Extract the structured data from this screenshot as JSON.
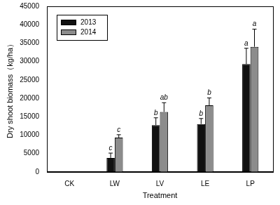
{
  "chart_data": {
    "type": "bar",
    "x_label": "Treatment",
    "y_label": "Dry shoot biomass（kg/ha）",
    "categories": [
      "CK",
      "LW",
      "LV",
      "LE",
      "LP"
    ],
    "series": [
      {
        "name": "2013",
        "color": "#111111",
        "values": [
          0,
          3800,
          12700,
          13000,
          29300
        ],
        "errors": [
          0,
          1300,
          2000,
          1500,
          4300
        ],
        "annotations": [
          null,
          "c",
          "b",
          "b",
          "a"
        ]
      },
      {
        "name": "2014",
        "color": "#8c8c8c",
        "values": [
          0,
          9300,
          16300,
          18100,
          34000
        ],
        "errors": [
          0,
          800,
          2500,
          2000,
          4800
        ],
        "annotations": [
          null,
          "c",
          "ab",
          "b",
          "a"
        ]
      }
    ],
    "ylim": [
      0,
      45000
    ],
    "yticks": [
      0,
      5000,
      10000,
      15000,
      20000,
      25000,
      30000,
      35000,
      40000,
      45000
    ],
    "grid": false,
    "legend": "upper left"
  }
}
